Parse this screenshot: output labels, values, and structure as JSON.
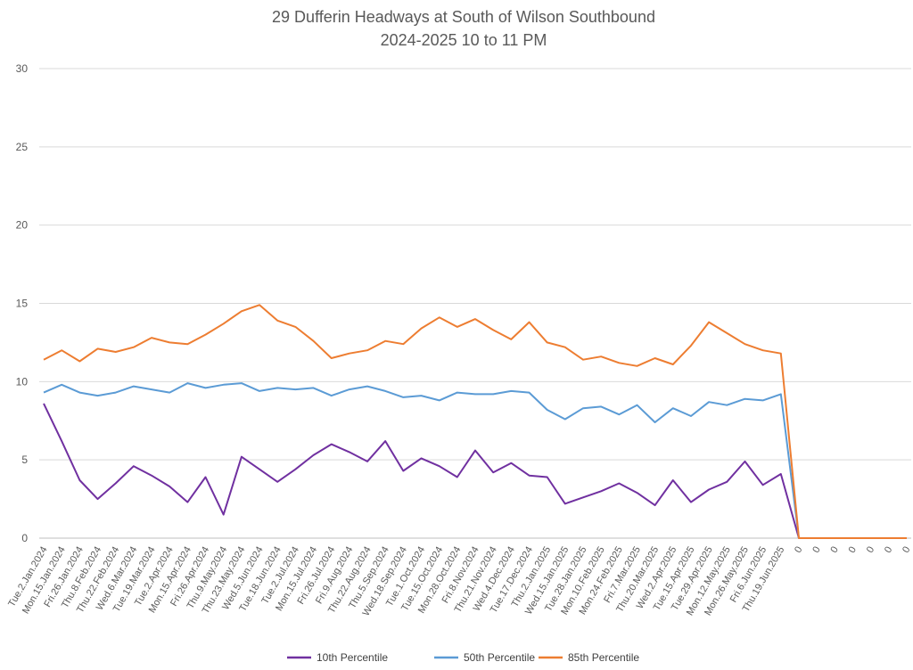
{
  "chart_data": {
    "type": "line",
    "title": "29 Dufferin Headways at South of Wilson Southbound",
    "subtitle": "2024-2025 10 to 11 PM",
    "xlabel": "",
    "ylabel": "",
    "ylim": [
      0,
      30
    ],
    "yticks": [
      "0",
      "5",
      "10",
      "15",
      "20",
      "25",
      "30"
    ],
    "grid": "horizontal",
    "legend_placement": "bottom",
    "categories": [
      "Tue.2.Jan.2024",
      "Mon.15.Jan.2024",
      "Fri.26.Jan.2024",
      "Thu.8.Feb.2024",
      "Thu.22.Feb.2024",
      "Wed.6.Mar.2024",
      "Tue.19.Mar.2024",
      "Tue.2.Apr.2024",
      "Mon.15.Apr.2024",
      "Fri.26.Apr.2024",
      "Thu.9.May.2024",
      "Thu.23.May.2024",
      "Wed.5.Jun.2024",
      "Tue.18.Jun.2024",
      "Tue.2.Jul.2024",
      "Mon.15.Jul.2024",
      "Fri.26.Jul.2024",
      "Fri.9.Aug.2024",
      "Thu.22.Aug.2024",
      "Thu.5.Sep.2024",
      "Wed.18.Sep.2024",
      "Tue.1.Oct.2024",
      "Tue.15.Oct.2024",
      "Mon.28.Oct.2024",
      "Fri.8.Nov.2024",
      "Thu.21.Nov.2024",
      "Wed.4.Dec.2024",
      "Tue.17.Dec.2024",
      "Thu.2.Jan.2025",
      "Wed.15.Jan.2025",
      "Tue.28.Jan.2025",
      "Mon.10.Feb.2025",
      "Mon.24.Feb.2025",
      "Fri.7.Mar.2025",
      "Thu.20.Mar.2025",
      "Wed.2.Apr.2025",
      "Tue.15.Apr.2025",
      "Tue.29.Apr.2025",
      "Mon.12.May.2025",
      "Mon.26.May.2025",
      "Fri.6.Jun.2025",
      "Thu.19.Jun.2025",
      "0",
      "0",
      "0",
      "0",
      "0",
      "0",
      "0"
    ],
    "series": [
      {
        "name": "10th Percentile",
        "color": "#7030A0",
        "values": [
          8.6,
          6.2,
          3.7,
          2.5,
          3.5,
          4.6,
          4.0,
          3.3,
          2.3,
          3.9,
          1.5,
          5.2,
          4.4,
          3.6,
          4.4,
          5.3,
          6.0,
          5.5,
          4.9,
          6.2,
          4.3,
          5.1,
          4.6,
          3.9,
          5.6,
          4.2,
          4.8,
          4.0,
          3.9,
          2.2,
          2.6,
          3.0,
          3.5,
          2.9,
          2.1,
          3.7,
          2.3,
          3.1,
          3.6,
          4.9,
          3.4,
          4.1,
          0,
          0,
          0,
          0,
          0,
          0,
          0
        ]
      },
      {
        "name": "50th Percentile",
        "color": "#5B9BD5",
        "values": [
          9.3,
          9.8,
          9.3,
          9.1,
          9.3,
          9.7,
          9.5,
          9.3,
          9.9,
          9.6,
          9.8,
          9.9,
          9.4,
          9.6,
          9.5,
          9.6,
          9.1,
          9.5,
          9.7,
          9.4,
          9.0,
          9.1,
          8.8,
          9.3,
          9.2,
          9.2,
          9.4,
          9.3,
          8.2,
          7.6,
          8.3,
          8.4,
          7.9,
          8.5,
          7.4,
          8.3,
          7.8,
          8.7,
          8.5,
          8.9,
          8.8,
          9.2,
          0,
          0,
          0,
          0,
          0,
          0,
          0
        ]
      },
      {
        "name": "85th Percentile",
        "color": "#ED7D31",
        "values": [
          11.4,
          12.0,
          11.3,
          12.1,
          11.9,
          12.2,
          12.8,
          12.5,
          12.4,
          13.0,
          13.7,
          14.5,
          14.9,
          13.9,
          13.5,
          12.6,
          11.5,
          11.8,
          12.0,
          12.6,
          12.4,
          13.4,
          14.1,
          13.5,
          14.0,
          13.3,
          12.7,
          13.8,
          12.5,
          12.2,
          11.4,
          11.6,
          11.2,
          11.0,
          11.5,
          11.1,
          12.3,
          13.8,
          13.1,
          12.4,
          12.0,
          11.8,
          0,
          0,
          0,
          0,
          0,
          0,
          0
        ]
      }
    ]
  }
}
